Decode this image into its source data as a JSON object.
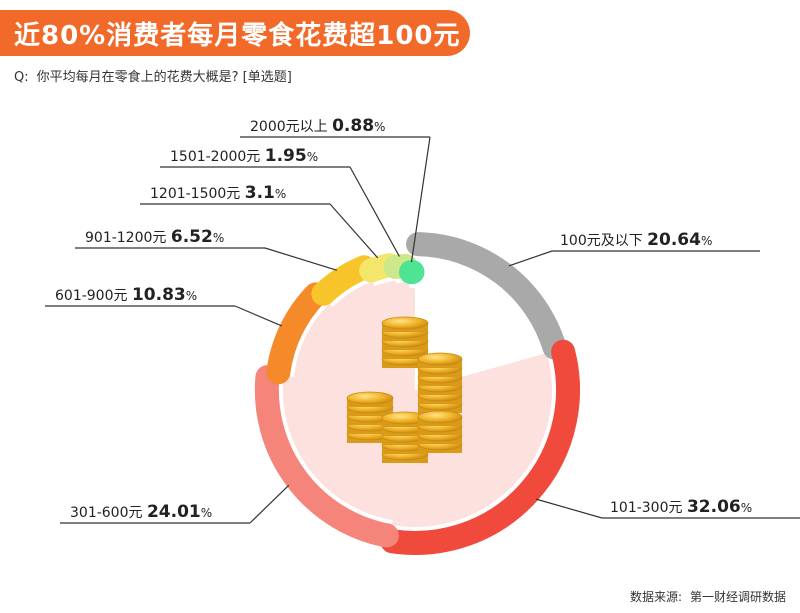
{
  "header": {
    "title": "近80%消费者每月零食花费超100元",
    "question_label": "Q:",
    "question_text": "你平均每月在零食上的花费大概是? [单选题]"
  },
  "source": {
    "label": "数据来源:",
    "value": "第一财经调研数据"
  },
  "chart_data": {
    "type": "pie",
    "title": "",
    "unit": "%",
    "slices": [
      {
        "label": "100元及以下",
        "value": 20.64,
        "value_text": "20.64",
        "color": "#a9a9a9"
      },
      {
        "label": "101-300元",
        "value": 32.06,
        "value_text": "32.06",
        "color": "#ef4a3c"
      },
      {
        "label": "301-600元",
        "value": 24.01,
        "value_text": "24.01",
        "color": "#f5847a"
      },
      {
        "label": "601-900元",
        "value": 10.83,
        "value_text": "10.83",
        "color": "#f58a2a"
      },
      {
        "label": "901-1200元",
        "value": 6.52,
        "value_text": "6.52",
        "color": "#f7c52a"
      },
      {
        "label": "1201-1500元",
        "value": 3.1,
        "value_text": "3.1",
        "color": "#f3e66a"
      },
      {
        "label": "1501-2000元",
        "value": 1.95,
        "value_text": "1.95",
        "color": "#cde88a"
      },
      {
        "label": "2000元以上",
        "value": 0.88,
        "value_text": "0.88",
        "color": "#4fe394"
      }
    ]
  }
}
